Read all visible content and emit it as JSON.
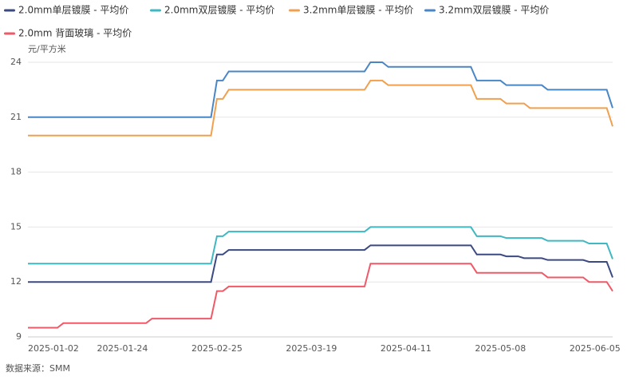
{
  "chart_data": {
    "type": "line",
    "unit_label": "元/平方米",
    "source": "数据来源：SMM",
    "categories": [
      "2025-01-02",
      null,
      null,
      null,
      null,
      null,
      null,
      null,
      null,
      null,
      null,
      null,
      null,
      null,
      null,
      null,
      "2025-01-24",
      null,
      null,
      null,
      null,
      null,
      null,
      null,
      null,
      null,
      null,
      null,
      null,
      null,
      null,
      null,
      "2025-02-25",
      null,
      null,
      null,
      null,
      null,
      null,
      null,
      null,
      null,
      null,
      null,
      null,
      null,
      null,
      null,
      "2025-03-19",
      null,
      null,
      null,
      null,
      null,
      null,
      null,
      null,
      null,
      null,
      null,
      null,
      null,
      null,
      null,
      "2025-04-11",
      null,
      null,
      null,
      null,
      null,
      null,
      null,
      null,
      null,
      null,
      null,
      null,
      null,
      null,
      null,
      "2025-05-08",
      null,
      null,
      null,
      null,
      null,
      null,
      null,
      null,
      null,
      null,
      null,
      null,
      null,
      null,
      null,
      "2025-06-05",
      null,
      null,
      null
    ],
    "ylim": [
      9,
      24
    ],
    "yticks": [
      9,
      12,
      15,
      18,
      21,
      24
    ],
    "grid": true,
    "series": [
      {
        "name": "2.0mm单层镀膜 - 平均价",
        "color": "#3b4a82",
        "values": [
          12,
          12,
          12,
          12,
          12,
          12,
          12,
          12,
          12,
          12,
          12,
          12,
          12,
          12,
          12,
          12,
          12,
          12,
          12,
          12,
          12,
          12,
          12,
          12,
          12,
          12,
          12,
          12,
          12,
          12,
          12,
          12,
          13.5,
          13.5,
          13.75,
          13.75,
          13.75,
          13.75,
          13.75,
          13.75,
          13.75,
          13.75,
          13.75,
          13.75,
          13.75,
          13.75,
          13.75,
          13.75,
          13.75,
          13.75,
          13.75,
          13.75,
          13.75,
          13.75,
          13.75,
          13.75,
          13.75,
          13.75,
          14,
          14,
          14,
          14,
          14,
          14,
          14,
          14,
          14,
          14,
          14,
          14,
          14,
          14,
          14,
          14,
          14,
          14,
          13.5,
          13.5,
          13.5,
          13.5,
          13.5,
          13.4,
          13.4,
          13.4,
          13.3,
          13.3,
          13.3,
          13.3,
          13.2,
          13.2,
          13.2,
          13.2,
          13.2,
          13.2,
          13.2,
          13.1,
          13.1,
          13.1,
          13.1,
          12.25
        ]
      },
      {
        "name": "2.0mm双层镀膜 - 平均价",
        "color": "#3fb8c2",
        "values": [
          13,
          13,
          13,
          13,
          13,
          13,
          13,
          13,
          13,
          13,
          13,
          13,
          13,
          13,
          13,
          13,
          13,
          13,
          13,
          13,
          13,
          13,
          13,
          13,
          13,
          13,
          13,
          13,
          13,
          13,
          13,
          13,
          14.5,
          14.5,
          14.75,
          14.75,
          14.75,
          14.75,
          14.75,
          14.75,
          14.75,
          14.75,
          14.75,
          14.75,
          14.75,
          14.75,
          14.75,
          14.75,
          14.75,
          14.75,
          14.75,
          14.75,
          14.75,
          14.75,
          14.75,
          14.75,
          14.75,
          14.75,
          15,
          15,
          15,
          15,
          15,
          15,
          15,
          15,
          15,
          15,
          15,
          15,
          15,
          15,
          15,
          15,
          15,
          15,
          14.5,
          14.5,
          14.5,
          14.5,
          14.5,
          14.4,
          14.4,
          14.4,
          14.4,
          14.4,
          14.4,
          14.4,
          14.25,
          14.25,
          14.25,
          14.25,
          14.25,
          14.25,
          14.25,
          14.1,
          14.1,
          14.1,
          14.1,
          13.25
        ]
      },
      {
        "name": "3.2mm单层镀膜 - 平均价",
        "color": "#f0a04e",
        "values": [
          20,
          20,
          20,
          20,
          20,
          20,
          20,
          20,
          20,
          20,
          20,
          20,
          20,
          20,
          20,
          20,
          20,
          20,
          20,
          20,
          20,
          20,
          20,
          20,
          20,
          20,
          20,
          20,
          20,
          20,
          20,
          20,
          22,
          22,
          22.5,
          22.5,
          22.5,
          22.5,
          22.5,
          22.5,
          22.5,
          22.5,
          22.5,
          22.5,
          22.5,
          22.5,
          22.5,
          22.5,
          22.5,
          22.5,
          22.5,
          22.5,
          22.5,
          22.5,
          22.5,
          22.5,
          22.5,
          22.5,
          23,
          23,
          23,
          22.75,
          22.75,
          22.75,
          22.75,
          22.75,
          22.75,
          22.75,
          22.75,
          22.75,
          22.75,
          22.75,
          22.75,
          22.75,
          22.75,
          22.75,
          22,
          22,
          22,
          22,
          22,
          21.75,
          21.75,
          21.75,
          21.75,
          21.5,
          21.5,
          21.5,
          21.5,
          21.5,
          21.5,
          21.5,
          21.5,
          21.5,
          21.5,
          21.5,
          21.5,
          21.5,
          21.5,
          20.5
        ]
      },
      {
        "name": "3.2mm双层镀膜 - 平均价",
        "color": "#4a86c6",
        "values": [
          21,
          21,
          21,
          21,
          21,
          21,
          21,
          21,
          21,
          21,
          21,
          21,
          21,
          21,
          21,
          21,
          21,
          21,
          21,
          21,
          21,
          21,
          21,
          21,
          21,
          21,
          21,
          21,
          21,
          21,
          21,
          21,
          23,
          23,
          23.5,
          23.5,
          23.5,
          23.5,
          23.5,
          23.5,
          23.5,
          23.5,
          23.5,
          23.5,
          23.5,
          23.5,
          23.5,
          23.5,
          23.5,
          23.5,
          23.5,
          23.5,
          23.5,
          23.5,
          23.5,
          23.5,
          23.5,
          23.5,
          24,
          24,
          24,
          23.75,
          23.75,
          23.75,
          23.75,
          23.75,
          23.75,
          23.75,
          23.75,
          23.75,
          23.75,
          23.75,
          23.75,
          23.75,
          23.75,
          23.75,
          23,
          23,
          23,
          23,
          23,
          22.75,
          22.75,
          22.75,
          22.75,
          22.75,
          22.75,
          22.75,
          22.5,
          22.5,
          22.5,
          22.5,
          22.5,
          22.5,
          22.5,
          22.5,
          22.5,
          22.5,
          22.5,
          21.5
        ]
      },
      {
        "name": "2.0mm 背面玻璃 - 平均价",
        "color": "#f05a68",
        "values": [
          9.5,
          9.5,
          9.5,
          9.5,
          9.5,
          9.5,
          9.75,
          9.75,
          9.75,
          9.75,
          9.75,
          9.75,
          9.75,
          9.75,
          9.75,
          9.75,
          9.75,
          9.75,
          9.75,
          9.75,
          9.75,
          10,
          10,
          10,
          10,
          10,
          10,
          10,
          10,
          10,
          10,
          10,
          11.5,
          11.5,
          11.75,
          11.75,
          11.75,
          11.75,
          11.75,
          11.75,
          11.75,
          11.75,
          11.75,
          11.75,
          11.75,
          11.75,
          11.75,
          11.75,
          11.75,
          11.75,
          11.75,
          11.75,
          11.75,
          11.75,
          11.75,
          11.75,
          11.75,
          11.75,
          13,
          13,
          13,
          13,
          13,
          13,
          13,
          13,
          13,
          13,
          13,
          13,
          13,
          13,
          13,
          13,
          13,
          13,
          12.5,
          12.5,
          12.5,
          12.5,
          12.5,
          12.5,
          12.5,
          12.5,
          12.5,
          12.5,
          12.5,
          12.5,
          12.25,
          12.25,
          12.25,
          12.25,
          12.25,
          12.25,
          12.25,
          12,
          12,
          12,
          12,
          11.5
        ]
      }
    ]
  }
}
